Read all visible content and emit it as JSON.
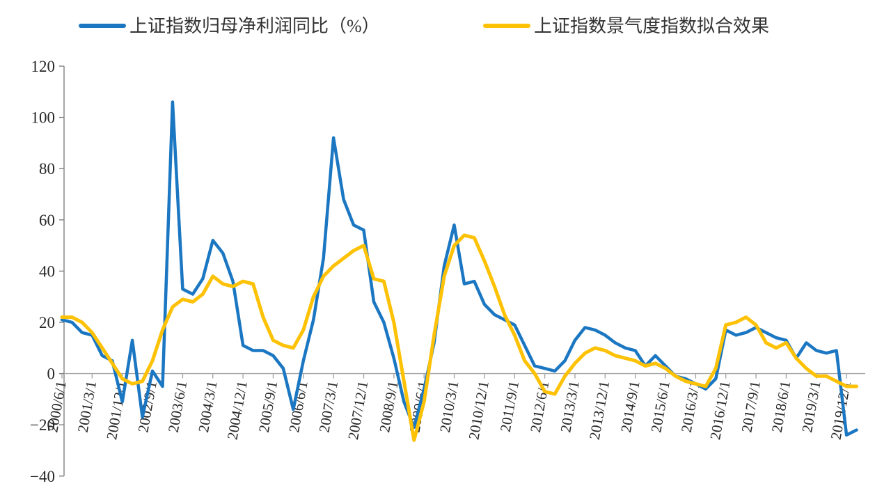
{
  "legend": {
    "items": [
      {
        "label": "上证指数归母净利润同比（%）",
        "color": "#1b77c2"
      },
      {
        "label": "上证指数景气度指数拟合效果",
        "color": "#fdc105"
      }
    ]
  },
  "chart_data": {
    "type": "line",
    "title": "",
    "xlabel": "",
    "ylabel": "",
    "ylim": [
      -40,
      120
    ],
    "ytick_step": 20,
    "yticks": [
      120,
      100,
      80,
      60,
      40,
      20,
      0,
      -20,
      -40
    ],
    "grid": "zero-line-only",
    "legend_position": "top",
    "x_label_every": 3,
    "x": [
      "2000/6/1",
      "2000/9/1",
      "2000/12/1",
      "2001/3/1",
      "2001/6/1",
      "2001/9/1",
      "2001/12/1",
      "2002/3/1",
      "2002/6/1",
      "2002/9/1",
      "2002/12/1",
      "2003/3/1",
      "2003/6/1",
      "2003/9/1",
      "2003/12/1",
      "2004/3/1",
      "2004/6/1",
      "2004/9/1",
      "2004/12/1",
      "2005/3/1",
      "2005/6/1",
      "2005/9/1",
      "2005/12/1",
      "2006/3/1",
      "2006/6/1",
      "2006/9/1",
      "2006/12/1",
      "2007/3/1",
      "2007/6/1",
      "2007/9/1",
      "2007/12/1",
      "2008/3/1",
      "2008/6/1",
      "2008/9/1",
      "2008/12/1",
      "2009/3/1",
      "2009/6/1",
      "2009/9/1",
      "2009/12/1",
      "2010/3/1",
      "2010/6/1",
      "2010/9/1",
      "2010/12/1",
      "2011/3/1",
      "2011/6/1",
      "2011/9/1",
      "2011/12/1",
      "2012/3/1",
      "2012/6/1",
      "2012/9/1",
      "2012/12/1",
      "2013/3/1",
      "2013/6/1",
      "2013/9/1",
      "2013/12/1",
      "2014/3/1",
      "2014/6/1",
      "2014/9/1",
      "2014/12/1",
      "2015/3/1",
      "2015/6/1",
      "2015/9/1",
      "2015/12/1",
      "2016/3/1",
      "2016/6/1",
      "2016/9/1",
      "2016/12/1",
      "2017/3/1",
      "2017/6/1",
      "2017/9/1",
      "2017/12/1",
      "2018/3/1",
      "2018/6/1",
      "2018/9/1",
      "2018/12/1",
      "2019/3/1",
      "2019/6/1",
      "2019/9/1",
      "2019/12/1",
      "2020/3/1"
    ],
    "series": [
      {
        "name": "上证指数归母净利润同比（%）",
        "color": "#1b77c2",
        "width": 4.5,
        "values": [
          21,
          20,
          16,
          15,
          7,
          5,
          -11,
          13,
          -17,
          1,
          -5,
          106,
          33,
          31,
          37,
          52,
          47,
          36,
          11,
          9,
          9,
          7,
          2,
          -14,
          5,
          21,
          45,
          92,
          68,
          58,
          56,
          28,
          20,
          6,
          -11,
          -21,
          -6,
          12,
          42,
          58,
          35,
          36,
          27,
          23,
          21,
          19,
          11,
          3,
          2,
          1,
          5,
          13,
          18,
          17,
          15,
          12,
          10,
          9,
          3,
          7,
          3,
          -1,
          -2,
          -4,
          -6,
          -2,
          17,
          15,
          16,
          18,
          16,
          14,
          13,
          6,
          12,
          9,
          8,
          9,
          -24,
          -22
        ]
      },
      {
        "name": "上证指数景气度指数拟合效果",
        "color": "#fdc105",
        "width": 5,
        "values": [
          22,
          22,
          20,
          16,
          10,
          4,
          -2,
          -4,
          -3,
          5,
          17,
          26,
          29,
          28,
          31,
          38,
          35,
          34,
          36,
          35,
          22,
          13,
          11,
          10,
          17,
          30,
          38,
          42,
          45,
          48,
          50,
          37,
          36,
          20,
          -3,
          -26,
          -11,
          15,
          38,
          50,
          54,
          53,
          44,
          34,
          23,
          15,
          5,
          0,
          -7,
          -8,
          -1,
          4,
          8,
          10,
          9,
          7,
          6,
          5,
          3,
          4,
          2,
          -1,
          -3,
          -4,
          -5,
          2,
          19,
          20,
          22,
          19,
          12,
          10,
          12,
          6,
          2,
          -1,
          -1,
          -3,
          -5,
          -5
        ]
      }
    ],
    "style": {
      "axis_color": "#808080",
      "zero_line_color": "#a6a6a6",
      "text_color": "#262626",
      "background": "#ffffff"
    }
  }
}
